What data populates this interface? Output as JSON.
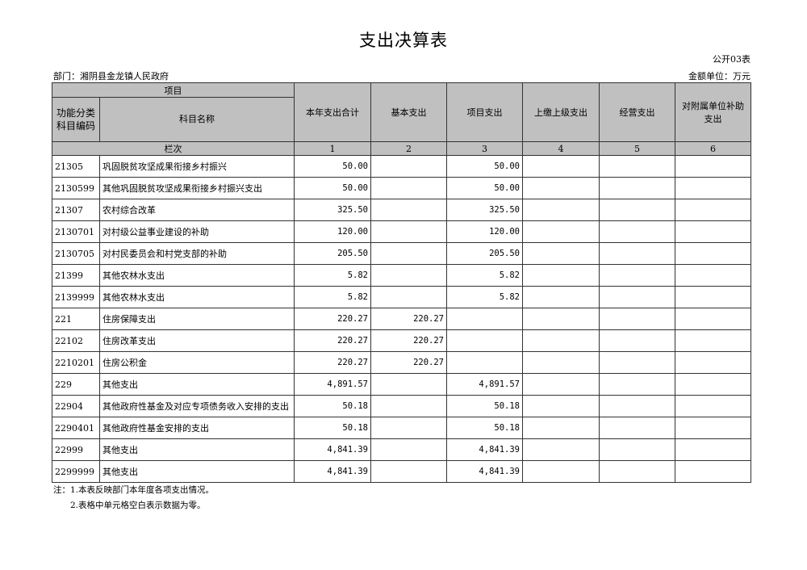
{
  "title": "支出决算表",
  "table_no": "公开03表",
  "department": "部门：湘阴县金龙镇人民政府",
  "unit": "金额单位：万元",
  "header": {
    "project": "项目",
    "code": "功能分类科目编码",
    "name": "科目名称",
    "columns": [
      "本年支出合计",
      "基本支出",
      "项目支出",
      "上缴上级支出",
      "经营支出",
      "对附属单位补助支出"
    ],
    "row_label": "栏次",
    "column_numbers": [
      "1",
      "2",
      "3",
      "4",
      "5",
      "6"
    ]
  },
  "rows": [
    {
      "code": "21305",
      "name": "巩固脱贫攻坚成果衔接乡村振兴",
      "values": [
        "50.00",
        "",
        "50.00",
        "",
        "",
        ""
      ]
    },
    {
      "code": "2130599",
      "name": "其他巩固脱贫攻坚成果衔接乡村振兴支出",
      "values": [
        "50.00",
        "",
        "50.00",
        "",
        "",
        ""
      ]
    },
    {
      "code": "21307",
      "name": "农村综合改革",
      "values": [
        "325.50",
        "",
        "325.50",
        "",
        "",
        ""
      ]
    },
    {
      "code": "2130701",
      "name": "对村级公益事业建设的补助",
      "values": [
        "120.00",
        "",
        "120.00",
        "",
        "",
        ""
      ]
    },
    {
      "code": "2130705",
      "name": "对村民委员会和村党支部的补助",
      "values": [
        "205.50",
        "",
        "205.50",
        "",
        "",
        ""
      ]
    },
    {
      "code": "21399",
      "name": "其他农林水支出",
      "values": [
        "5.82",
        "",
        "5.82",
        "",
        "",
        ""
      ]
    },
    {
      "code": "2139999",
      "name": "其他农林水支出",
      "values": [
        "5.82",
        "",
        "5.82",
        "",
        "",
        ""
      ]
    },
    {
      "code": "221",
      "name": "住房保障支出",
      "values": [
        "220.27",
        "220.27",
        "",
        "",
        "",
        ""
      ]
    },
    {
      "code": "22102",
      "name": "住房改革支出",
      "values": [
        "220.27",
        "220.27",
        "",
        "",
        "",
        ""
      ]
    },
    {
      "code": "2210201",
      "name": "住房公积金",
      "values": [
        "220.27",
        "220.27",
        "",
        "",
        "",
        ""
      ]
    },
    {
      "code": "229",
      "name": "其他支出",
      "values": [
        "4,891.57",
        "",
        "4,891.57",
        "",
        "",
        ""
      ]
    },
    {
      "code": "22904",
      "name": "其他政府性基金及对应专项债务收入安排的支出",
      "values": [
        "50.18",
        "",
        "50.18",
        "",
        "",
        ""
      ]
    },
    {
      "code": "2290401",
      "name": "其他政府性基金安排的支出",
      "values": [
        "50.18",
        "",
        "50.18",
        "",
        "",
        ""
      ]
    },
    {
      "code": "22999",
      "name": "其他支出",
      "values": [
        "4,841.39",
        "",
        "4,841.39",
        "",
        "",
        ""
      ]
    },
    {
      "code": "2299999",
      "name": "其他支出",
      "values": [
        "4,841.39",
        "",
        "4,841.39",
        "",
        "",
        ""
      ]
    }
  ],
  "notes": [
    "注：1.本表反映部门本年度各项支出情况。",
    "　　2.表格中单元格空白表示数据为零。"
  ]
}
